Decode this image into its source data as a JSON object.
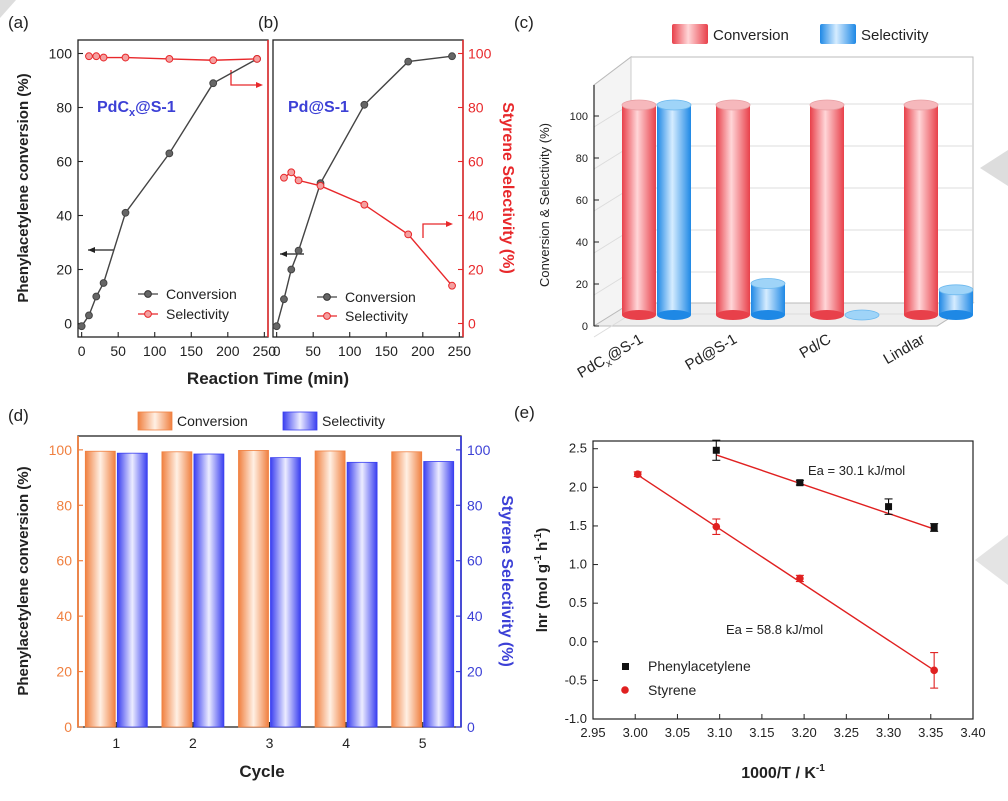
{
  "colors": {
    "black": "#222222",
    "red": "#e8282b",
    "blue": "#3c40d6",
    "conv_red": "#f0606a",
    "sel_blue": "#3a9fea",
    "conv_orange": "#f39a5e",
    "sel_violet": "#5a5ff0",
    "ea_red": "#e02020"
  },
  "chart_data": [
    {
      "id": "a",
      "type": "line",
      "panel_label": "(a)",
      "title": "PdCx@S-1",
      "title_main": "PdC",
      "title_sub": "x",
      "title_rest": "@S-1",
      "ylabel": "Phenylacetylene conversion (%)",
      "xlabel": "Reaction Time (min)",
      "xlim": [
        -5,
        255
      ],
      "ylim": [
        -5,
        105
      ],
      "xticks": [
        0,
        50,
        100,
        150,
        200,
        250
      ],
      "yticks": [
        0,
        20,
        40,
        60,
        80,
        100
      ],
      "series": [
        {
          "name": "Conversion",
          "x": [
            0,
            10,
            20,
            30,
            60,
            120,
            180,
            240
          ],
          "y": [
            -1,
            3,
            10,
            15,
            41,
            63,
            89,
            98
          ]
        },
        {
          "name": "Selectivity",
          "x": [
            10,
            20,
            30,
            60,
            120,
            180,
            240
          ],
          "y": [
            99,
            99,
            98.5,
            98.5,
            98,
            97.5,
            98
          ]
        }
      ],
      "legend": [
        "Conversion",
        "Selectivity"
      ]
    },
    {
      "id": "b",
      "type": "line",
      "panel_label": "(b)",
      "title": "Pd@S-1",
      "ylabel_right": "Styrene Selectivity (%)",
      "xlim": [
        -5,
        255
      ],
      "ylim": [
        -5,
        105
      ],
      "xticks": [
        0,
        50,
        100,
        150,
        200,
        250
      ],
      "yticks": [
        0,
        20,
        40,
        60,
        80,
        100
      ],
      "series": [
        {
          "name": "Conversion",
          "x": [
            0,
            10,
            20,
            30,
            60,
            120,
            180,
            240
          ],
          "y": [
            -1,
            9,
            20,
            27,
            52,
            81,
            97,
            99
          ]
        },
        {
          "name": "Selectivity",
          "x": [
            10,
            20,
            30,
            60,
            120,
            180,
            240
          ],
          "y": [
            54,
            56,
            53,
            51,
            44,
            33,
            14
          ]
        }
      ],
      "legend": [
        "Conversion",
        "Selectivity"
      ]
    },
    {
      "id": "c",
      "type": "bar",
      "panel_label": "(c)",
      "categories": [
        "PdCx@S-1",
        "Pd@S-1",
        "Pd/C",
        "Lindlar"
      ],
      "cat_main": [
        "PdC",
        "Pd@S-1",
        "Pd/C",
        "Lindlar"
      ],
      "cat_sub": [
        "x",
        "",
        "",
        ""
      ],
      "cat_rest": [
        "@S-1",
        "",
        "",
        ""
      ],
      "series": [
        {
          "name": "Conversion",
          "values": [
            100,
            100,
            100,
            100
          ]
        },
        {
          "name": "Selectivity",
          "values": [
            100,
            15,
            0,
            12
          ]
        }
      ],
      "ylabel": "Conversion & Selectivity (%)",
      "ylim": [
        0,
        110
      ],
      "yticks": [
        0,
        20,
        40,
        60,
        80,
        100
      ],
      "legend": [
        "Conversion",
        "Selectivity"
      ]
    },
    {
      "id": "d",
      "type": "bar",
      "panel_label": "(d)",
      "categories": [
        "1",
        "2",
        "3",
        "4",
        "5"
      ],
      "series": [
        {
          "name": "Conversion",
          "values": [
            99.5,
            99.3,
            99.8,
            99.6,
            99.3
          ]
        },
        {
          "name": "Selectivity",
          "values": [
            98.8,
            98.5,
            97.2,
            95.5,
            95.8
          ]
        }
      ],
      "xlabel": "Cycle",
      "ylabel": "Phenylacetylene conversion (%)",
      "ylabel_right": "Styrene Selectivity (%)",
      "ylim": [
        0,
        105
      ],
      "yticks": [
        0,
        20,
        40,
        60,
        80,
        100
      ],
      "legend": [
        "Conversion",
        "Selectivity"
      ]
    },
    {
      "id": "e",
      "type": "scatter",
      "panel_label": "(e)",
      "xlabel": "1000/T / K-1",
      "xlabel_main": "1000/T / K",
      "xlabel_sup": "-1",
      "ylabel": "lnr (mol g-1 h-1)",
      "ylabel_main": "lnr (mol g",
      "ylabel_sup1": "-1",
      "ylabel_mid": " h",
      "ylabel_sup2": "-1",
      "ylabel_end": ")",
      "xlim": [
        2.95,
        3.4
      ],
      "ylim": [
        -1.0,
        2.6
      ],
      "xticks": [
        "2.95",
        "3.00",
        "3.05",
        "3.10",
        "3.15",
        "3.20",
        "3.25",
        "3.30",
        "3.35",
        "3.40"
      ],
      "yticks": [
        "-1.0",
        "-0.5",
        "0.0",
        "0.5",
        "1.0",
        "1.5",
        "2.0",
        "2.5"
      ],
      "series": [
        {
          "name": "Phenylacetylene",
          "marker": "square",
          "x": [
            3.096,
            3.195,
            3.3,
            3.354
          ],
          "y": [
            2.48,
            2.06,
            1.75,
            1.48
          ],
          "err": [
            0.13,
            0.03,
            0.1,
            0.05
          ],
          "fit_x": [
            3.096,
            3.354
          ],
          "fit_y": [
            2.42,
            1.46
          ],
          "annotation": "Ea = 30.1 kJ/mol"
        },
        {
          "name": "Styrene",
          "marker": "circle",
          "x": [
            3.003,
            3.096,
            3.195,
            3.354
          ],
          "y": [
            2.17,
            1.49,
            0.82,
            -0.37
          ],
          "err": [
            0.03,
            0.1,
            0.04,
            0.23
          ],
          "fit_x": [
            3.003,
            3.354
          ],
          "fit_y": [
            2.16,
            -0.37
          ],
          "annotation": "Ea = 58.8 kJ/mol"
        }
      ],
      "legend": [
        "Phenylacetylene",
        "Styrene"
      ]
    }
  ]
}
